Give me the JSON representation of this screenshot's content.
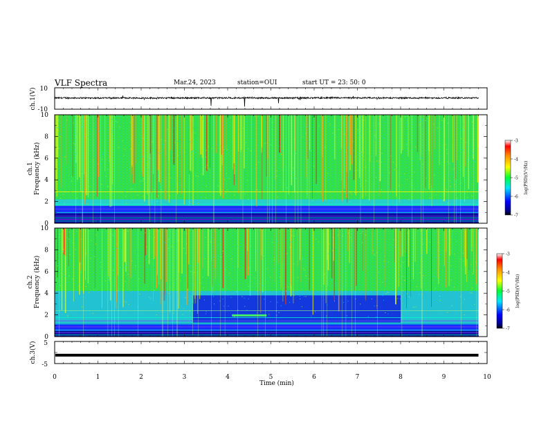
{
  "header": {
    "title": "VLF Spectra",
    "date": "Mar.24, 2023",
    "station": "station=OUI",
    "start": "start  UT  =   23: 50: 0"
  },
  "chart_data": [
    {
      "type": "line",
      "name": "ch1-waveform",
      "ylabel": "ch.1(V)",
      "ylim": [
        -10,
        10
      ],
      "yticks": [
        "10",
        "-10"
      ],
      "xlim": [
        0,
        10
      ],
      "level": 0.5,
      "noise_amplitude": 0.7
    },
    {
      "type": "heatmap",
      "name": "ch1-spectrogram",
      "ylabel": "ch.1",
      "ylabel2": "Frequency  (kHz)",
      "xlim": [
        0,
        10
      ],
      "ylim": [
        0,
        10
      ],
      "data_xmax": 9.8,
      "yticks": [
        "0",
        "2",
        "4",
        "6",
        "8",
        "10"
      ],
      "colorbar": {
        "label": "log(PSD)(V²/Hz)",
        "range": [
          -7,
          -3
        ],
        "ticks": [
          "-3",
          "-4",
          "-5",
          "-6",
          "-7"
        ]
      }
    },
    {
      "type": "heatmap",
      "name": "ch2-spectrogram",
      "ylabel": "ch.2",
      "ylabel2": "Frequency  (kHz)",
      "xlim": [
        0,
        10
      ],
      "ylim": [
        0,
        10
      ],
      "data_xmax": 9.8,
      "yticks": [
        "0",
        "2",
        "4",
        "6",
        "8",
        "10"
      ],
      "colorbar": {
        "label": "log(PSD)(V²/Hz)",
        "range": [
          -7,
          -3
        ],
        "ticks": [
          "-3",
          "-4",
          "-5",
          "-6",
          "-7"
        ]
      }
    },
    {
      "type": "line",
      "name": "ch3-waveform",
      "ylabel": "ch.3(V)",
      "ylim": [
        -5,
        5
      ],
      "yticks": [
        "5",
        "-5"
      ],
      "xlim": [
        0,
        10
      ],
      "level": -1.2
    }
  ],
  "xaxis": {
    "label": "Time  (min)",
    "ticks": [
      "0",
      "1",
      "2",
      "3",
      "4",
      "5",
      "6",
      "7",
      "8",
      "9",
      "10"
    ]
  }
}
